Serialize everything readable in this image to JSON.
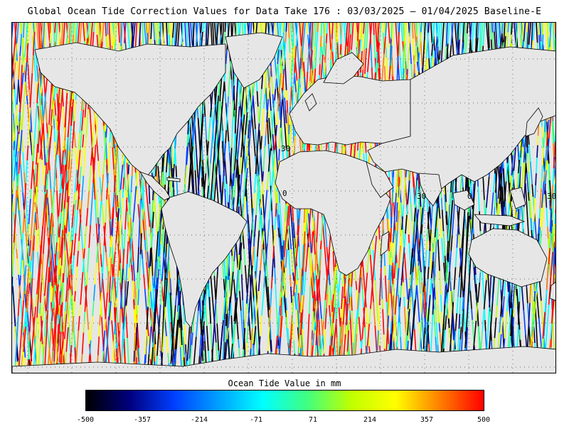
{
  "title": "Global Ocean Tide Correction Values for Data Take 176 : 03/03/2025 — 01/04/2025 Baseline-E",
  "colorbar": {
    "label": "Ocean Tide Value in mm",
    "ticks": [
      "-500",
      "-357",
      "-214",
      "-71",
      "71",
      "214",
      "357",
      "500"
    ],
    "min": -500,
    "max": 500,
    "colors": [
      "#000000",
      "#00007f",
      "#0040ff",
      "#00a0ff",
      "#00ffff",
      "#40ff80",
      "#c0ff00",
      "#ffff00",
      "#ff8000",
      "#ff0000"
    ]
  },
  "map": {
    "land_color": "#e6e6e6",
    "grid_style": "dotted",
    "grid_labels": [
      "30",
      "0",
      "30",
      "30",
      "0"
    ]
  }
}
